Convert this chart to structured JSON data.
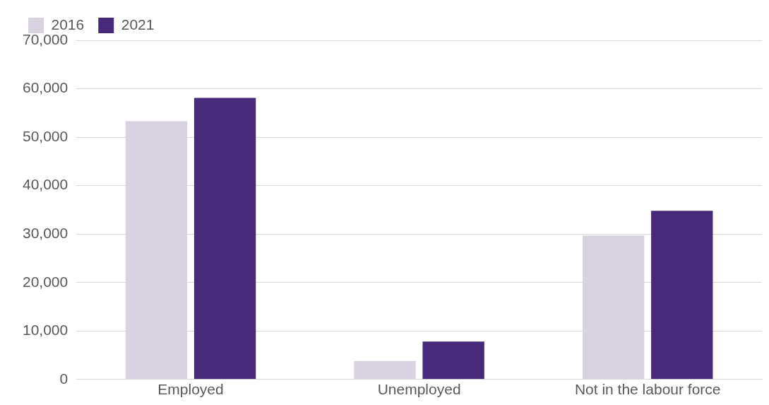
{
  "chart_data": {
    "type": "bar",
    "categories": [
      "Employed",
      "Unemployed",
      "Not in the labour force"
    ],
    "series": [
      {
        "name": "2016",
        "color": "#d9d2e0",
        "values": [
          53300,
          3800,
          29700
        ]
      },
      {
        "name": "2021",
        "color": "#472b7a",
        "values": [
          58100,
          7800,
          34800
        ]
      }
    ],
    "ylim": [
      0,
      70000
    ],
    "yticks": [
      {
        "value": 0,
        "label": "0"
      },
      {
        "value": 10000,
        "label": "10,000"
      },
      {
        "value": 20000,
        "label": "20,000"
      },
      {
        "value": 30000,
        "label": "30,000"
      },
      {
        "value": 40000,
        "label": "40,000"
      },
      {
        "value": 50000,
        "label": "50,000"
      },
      {
        "value": 60000,
        "label": "60,000"
      },
      {
        "value": 70000,
        "label": "70,000"
      }
    ],
    "grid": "y",
    "legend": "top left"
  }
}
